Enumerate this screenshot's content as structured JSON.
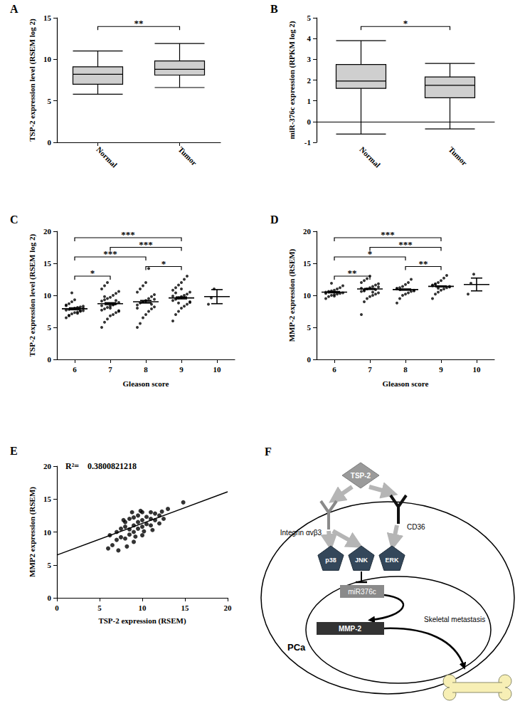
{
  "chart_data": [
    {
      "panel": "A",
      "type": "boxplot",
      "y_label": "TSP-2 expression level (RSEM log 2)",
      "categories": [
        "Normal",
        "Tumor"
      ],
      "boxes": [
        [
          5.8,
          7.0,
          8.2,
          9.1,
          11.0
        ],
        [
          6.6,
          8.1,
          8.8,
          9.8,
          11.9
        ]
      ],
      "color": "#cfcfcf",
      "ylim": [
        0,
        15
      ],
      "yticks": [
        0,
        5,
        10,
        15
      ],
      "grid": false,
      "comparisons": [
        {
          "from": "Normal",
          "to": "Tumor",
          "label": "**"
        }
      ]
    },
    {
      "panel": "B",
      "type": "boxplot",
      "y_label": "miR-376c expression (RPKM log 2)",
      "categories": [
        "Normal",
        "Tumor"
      ],
      "boxes": [
        [
          -0.6,
          1.6,
          1.95,
          2.75,
          3.9
        ],
        [
          -0.35,
          1.15,
          1.75,
          2.15,
          2.8
        ]
      ],
      "color": "#cfcfcf",
      "ylim": [
        -1,
        5
      ],
      "yticks": [
        -1,
        0,
        1,
        2,
        3,
        4,
        5
      ],
      "grid": false,
      "reference_line": {
        "y": 0,
        "line_style": "dotted"
      },
      "comparisons": [
        {
          "from": "Normal",
          "to": "Tumor",
          "label": "*"
        }
      ]
    },
    {
      "panel": "C",
      "type": "scatter",
      "y_label": "TSP-2 expression level (RSEM log 2)",
      "x_label": "Gleason score",
      "categories": [
        "6",
        "7",
        "8",
        "9",
        "10"
      ],
      "points": [
        [
          6.5,
          6.9,
          7.1,
          7.3,
          7.4,
          7.5,
          7.6,
          7.7,
          7.8,
          7.9,
          8.0,
          8.1,
          8.2,
          8.3,
          8.5,
          8.7,
          9.0,
          9.3,
          7.2,
          7.6,
          8.0,
          8.4,
          6.8,
          10.4
        ],
        [
          5.0,
          5.8,
          6.3,
          6.8,
          7.0,
          7.3,
          7.5,
          7.7,
          7.9,
          8.1,
          8.3,
          8.5,
          8.7,
          8.9,
          9.1,
          9.3,
          9.5,
          9.7,
          10.0,
          10.3,
          10.6,
          11.0,
          11.5,
          12.0,
          8.0,
          8.6,
          9.2,
          7.6,
          8.4,
          9.8
        ],
        [
          5.0,
          5.6,
          6.5,
          7.0,
          7.5,
          7.9,
          8.2,
          8.5,
          8.8,
          9.0,
          9.2,
          9.5,
          9.8,
          10.1,
          10.5,
          11.0,
          11.5,
          12.0,
          14.2,
          8.6,
          9.4,
          8.0
        ],
        [
          6.0,
          7.0,
          7.5,
          8.0,
          8.3,
          8.6,
          8.9,
          9.2,
          9.4,
          9.6,
          9.8,
          10.0,
          10.2,
          10.5,
          10.8,
          11.2,
          11.6,
          12.0,
          12.5,
          13.0,
          9.0,
          9.9,
          10.4,
          8.8,
          11.0
        ],
        [
          8.6,
          9.6,
          11.0
        ]
      ],
      "mean": [
        7.9,
        8.7,
        9.0,
        9.6,
        9.8
      ],
      "error": [
        0.15,
        0.15,
        0.2,
        0.15,
        1.1
      ],
      "marker": "circle",
      "color": "#000000",
      "ylim": [
        0,
        20
      ],
      "yticks": [
        0,
        5,
        10,
        15,
        20
      ],
      "grid": false,
      "comparisons": [
        {
          "from": "6",
          "to": "9",
          "label": "***"
        },
        {
          "from": "7",
          "to": "9",
          "label": "***"
        },
        {
          "from": "6",
          "to": "8",
          "label": "***"
        },
        {
          "from": "8",
          "to": "9",
          "label": "*"
        },
        {
          "from": "6",
          "to": "7",
          "label": "*"
        }
      ]
    },
    {
      "panel": "D",
      "type": "scatter",
      "y_label": "MMP-2 expression (RSEM)",
      "x_label": "Gleason score",
      "categories": [
        "6",
        "7",
        "8",
        "9",
        "10"
      ],
      "points": [
        [
          9.5,
          9.8,
          10.0,
          10.1,
          10.2,
          10.3,
          10.4,
          10.5,
          10.6,
          10.7,
          10.8,
          11.0,
          11.2,
          11.5,
          10.3,
          10.5,
          11.9,
          9.9
        ],
        [
          7.0,
          9.0,
          9.5,
          9.8,
          10.0,
          10.2,
          10.4,
          10.6,
          10.8,
          11.0,
          11.2,
          11.4,
          11.6,
          11.8,
          12.0,
          12.3,
          12.6,
          13.0,
          10.5,
          10.9,
          11.3,
          11.1,
          10.7
        ],
        [
          8.8,
          9.5,
          10.0,
          10.2,
          10.4,
          10.6,
          10.8,
          11.0,
          11.2,
          11.4,
          11.7,
          12.0,
          12.5,
          10.7,
          11.1,
          10.9
        ],
        [
          9.5,
          10.2,
          10.5,
          10.8,
          11.0,
          11.2,
          11.4,
          11.6,
          11.8,
          12.0,
          12.3,
          12.7,
          13.1,
          11.3,
          11.5,
          11.7,
          11.1
        ],
        [
          10.2,
          11.9,
          13.3
        ]
      ],
      "mean": [
        10.5,
        11.0,
        10.9,
        11.4,
        11.7
      ],
      "error": [
        0.1,
        0.08,
        0.1,
        0.08,
        1.0
      ],
      "marker": "circle",
      "color": "#000000",
      "ylim": [
        0,
        20
      ],
      "yticks": [
        0,
        5,
        10,
        15,
        20
      ],
      "grid": false,
      "comparisons": [
        {
          "from": "6",
          "to": "9",
          "label": "***"
        },
        {
          "from": "7",
          "to": "9",
          "label": "***"
        },
        {
          "from": "6",
          "to": "8",
          "label": "*"
        },
        {
          "from": "8",
          "to": "9",
          "label": "**"
        },
        {
          "from": "6",
          "to": "7",
          "label": "**"
        }
      ]
    },
    {
      "panel": "E",
      "type": "scatter",
      "x_label": "TSP-2 expression (RSEM)",
      "y_label": "MMP2 expression (RSEM)",
      "annotation": "R²=    0.3800821218",
      "x": [
        6,
        6.5,
        7,
        7,
        7.5,
        7.5,
        8,
        8,
        8,
        8.5,
        8.5,
        8.5,
        9,
        9,
        9,
        9,
        9.5,
        9.5,
        9.5,
        10,
        10,
        10,
        10,
        10.5,
        10.5,
        11,
        11,
        11,
        11.5,
        11.5,
        12,
        12,
        12.5,
        13,
        14.8,
        6.2,
        7.2,
        8.2,
        9.2,
        10.2,
        11.2,
        12.3,
        7.8,
        8.8,
        9.8
      ],
      "values": [
        7.5,
        8,
        8.8,
        10,
        9.2,
        10.5,
        9,
        10.8,
        11.5,
        9.6,
        10.4,
        12,
        10,
        11,
        12.2,
        8.5,
        10.5,
        11.5,
        12.5,
        10.8,
        11.8,
        9.5,
        13,
        11.2,
        12.3,
        11,
        12,
        13,
        11.8,
        12.8,
        12.5,
        11.3,
        12,
        13.5,
        14.5,
        9.5,
        7.2,
        7.8,
        9.3,
        10.1,
        10.3,
        13.1,
        11.8,
        13,
        13.2
      ],
      "fit_line": {
        "x": [
          0,
          20
        ],
        "y": [
          6.5,
          16.1
        ]
      },
      "marker": "circle",
      "color": "#000000",
      "xlim": [
        0,
        20
      ],
      "xticks": [
        0,
        5,
        10,
        15,
        20
      ],
      "ylim": [
        0,
        20
      ],
      "yticks": [
        0,
        5,
        10,
        15,
        20
      ],
      "grid": false
    }
  ],
  "diagram": {
    "panel": "F",
    "ligand": "TSP-2",
    "receptors": [
      "Integrin αvβ3",
      "CD36"
    ],
    "kinases": [
      "p38",
      "JNK",
      "ERK"
    ],
    "mirna": "miR376c",
    "target": "MMP-2",
    "cell": "PCa",
    "outcome": "Skeletal metastasis"
  }
}
